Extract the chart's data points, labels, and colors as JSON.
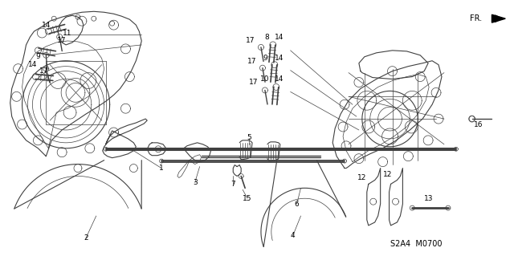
{
  "bg_color": "#ffffff",
  "line_color": "#404040",
  "fig_width": 6.4,
  "fig_height": 3.19,
  "dpi": 100,
  "subtitle": "S2A4  M0700",
  "fr_label": "FR."
}
